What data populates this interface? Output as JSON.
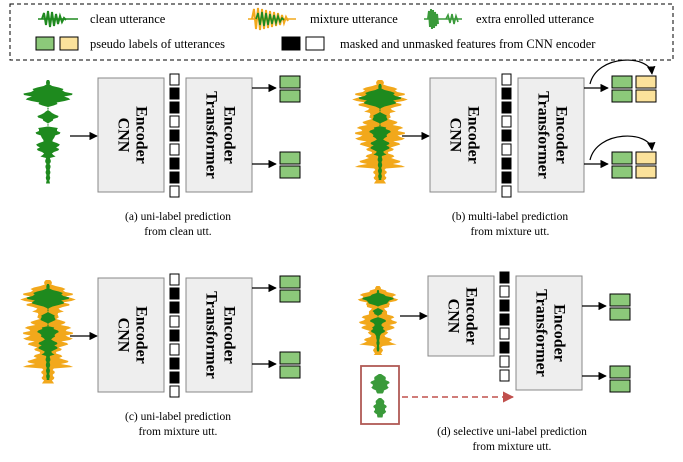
{
  "legend": {
    "clean": "clean utterance",
    "mixture": "mixture utterance",
    "enrolled": "extra enrolled utterance",
    "pseudo": "pseudo labels of utterances",
    "masked": "masked and unmasked features from CNN encoder"
  },
  "encoders": {
    "cnn_line1": "CNN",
    "cnn_line2": "Encoder",
    "tf_line1": "Transformer",
    "tf_line2": "Encoder"
  },
  "panels": {
    "a": {
      "line1": "(a) uni-label prediction",
      "line2": "from clean utt."
    },
    "b": {
      "line1": "(b) multi-label prediction",
      "line2": "from mixture utt."
    },
    "c": {
      "line1": "(c) uni-label prediction",
      "line2": "from mixture utt."
    },
    "d": {
      "line1": "(d) selective uni-label prediction",
      "line2": "from mixture utt."
    }
  },
  "colors": {
    "clean": "#1e8a1e",
    "mixture": "#f2a81b",
    "label_green": "#8cc97a",
    "label_yellow": "#fbe29b",
    "encoder_fill": "#eeeeee",
    "enroll_box": "#b05a55",
    "dashed_arrow": "#c0504d"
  }
}
